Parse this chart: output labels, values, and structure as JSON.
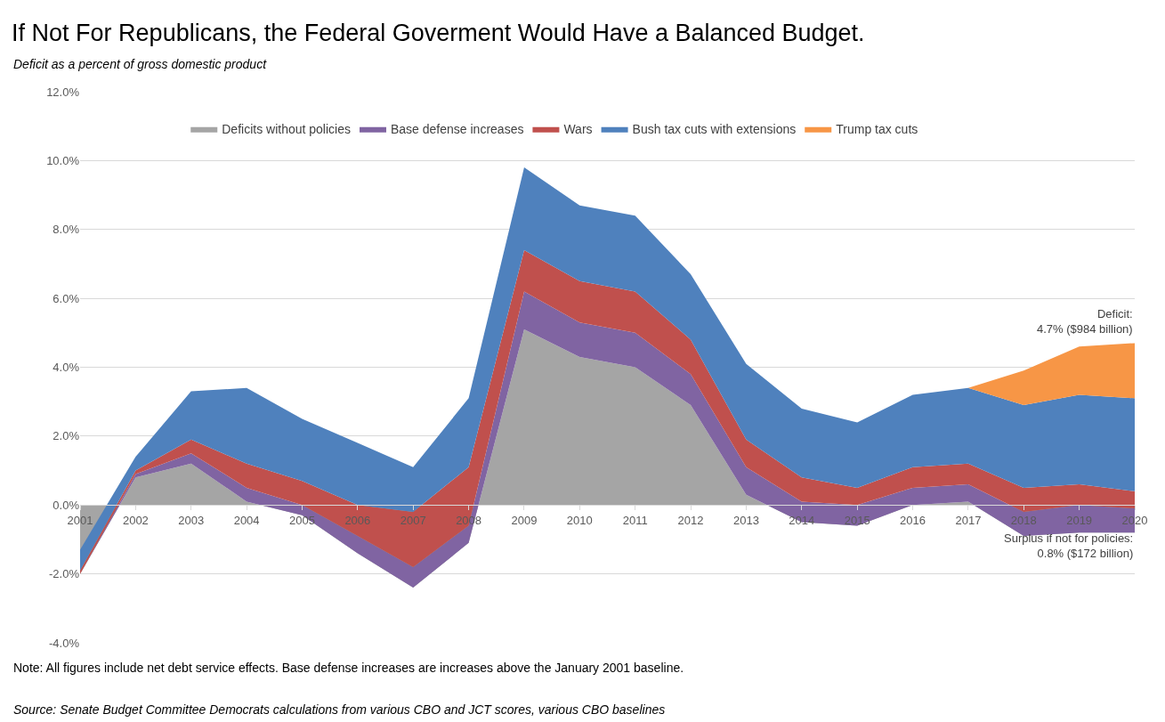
{
  "chart_data": {
    "type": "area",
    "stacked": true,
    "title": "If Not For Republicans, the Federal Goverment Would Have a Balanced Budget.",
    "subtitle": "Deficit as a percent of gross domestic product",
    "categories": [
      "2001",
      "2002",
      "2003",
      "2004",
      "2005",
      "2006",
      "2007",
      "2008",
      "2009",
      "2010",
      "2011",
      "2012",
      "2013",
      "2014",
      "2015",
      "2016",
      "2017",
      "2018",
      "2019",
      "2020"
    ],
    "series": [
      {
        "name": "Deficits without policies",
        "color": "#a5a5a5",
        "values": [
          -2.0,
          0.8,
          1.2,
          0.1,
          -0.3,
          -1.4,
          -2.4,
          -1.1,
          5.1,
          4.3,
          4.0,
          2.9,
          0.3,
          -0.5,
          -0.6,
          0.0,
          0.1,
          -0.9,
          -0.8,
          -0.8
        ]
      },
      {
        "name": "Base defense increases",
        "color": "#8064a2",
        "values": [
          0.0,
          0.1,
          0.3,
          0.4,
          0.3,
          0.5,
          0.6,
          0.5,
          1.1,
          1.0,
          1.0,
          0.9,
          0.8,
          0.6,
          0.6,
          0.5,
          0.5,
          0.7,
          0.8,
          0.7
        ]
      },
      {
        "name": "Wars",
        "color": "#c0504d",
        "values": [
          0.1,
          0.1,
          0.4,
          0.7,
          0.7,
          0.9,
          1.6,
          1.7,
          1.2,
          1.2,
          1.2,
          1.0,
          0.8,
          0.7,
          0.5,
          0.6,
          0.6,
          0.7,
          0.6,
          0.5
        ]
      },
      {
        "name": "Bush tax cuts with extensions",
        "color": "#4f81bd",
        "values": [
          0.6,
          0.4,
          1.4,
          2.2,
          1.8,
          1.8,
          1.3,
          2.0,
          2.4,
          2.2,
          2.2,
          1.9,
          2.2,
          2.0,
          1.9,
          2.1,
          2.2,
          2.4,
          2.6,
          2.7
        ]
      },
      {
        "name": "Trump tax cuts",
        "color": "#f79646",
        "values": [
          0,
          0,
          0,
          0,
          0,
          0,
          0,
          0,
          0,
          0,
          0,
          0,
          0,
          0,
          0,
          0,
          0,
          1.0,
          1.4,
          1.6
        ]
      }
    ],
    "ylim": [
      -4,
      12
    ],
    "yticks": [
      {
        "value": -4,
        "label": "-4.0%"
      },
      {
        "value": -2,
        "label": "-2.0%"
      },
      {
        "value": 0,
        "label": "0.0%"
      },
      {
        "value": 2,
        "label": "2.0%"
      },
      {
        "value": 4,
        "label": "4.0%"
      },
      {
        "value": 6,
        "label": "6.0%"
      },
      {
        "value": 8,
        "label": "8.0%"
      },
      {
        "value": 10,
        "label": "10.0%"
      },
      {
        "value": 12,
        "label": "12.0%"
      }
    ],
    "grid": "y",
    "legend": "top",
    "annotations": [
      {
        "text": "Deficit:\n4.7% ($984 billion)",
        "x": "2020",
        "y": 4.7
      },
      "Surplus if not for policies:\n0.8% ($172 billion)",
      "Note: All figures include net debt service effects. Base defense increases are increases above the January 2001 baseline.",
      "Source: Senate Budget Committee Democrats calculations from various CBO and JCT scores, various CBO baselines"
    ]
  }
}
